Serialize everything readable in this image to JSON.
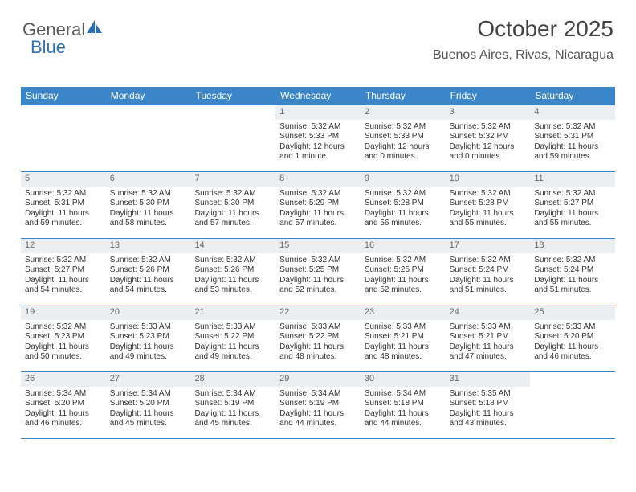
{
  "logo": {
    "text1": "General",
    "text2": "Blue"
  },
  "title": "October 2025",
  "location": "Buenos Aires, Rivas, Nicaragua",
  "colors": {
    "header_bg": "#3b86c8",
    "header_text": "#ffffff",
    "daynum_bg": "#eceff1",
    "daynum_text": "#666666",
    "body_text": "#333333",
    "border": "#3b86c8",
    "logo_gray": "#5a5a5a",
    "logo_blue": "#2c6fb5"
  },
  "day_headers": [
    "Sunday",
    "Monday",
    "Tuesday",
    "Wednesday",
    "Thursday",
    "Friday",
    "Saturday"
  ],
  "weeks": [
    [
      {
        "n": "",
        "empty": true
      },
      {
        "n": "",
        "empty": true
      },
      {
        "n": "",
        "empty": true
      },
      {
        "n": "1",
        "sr": "Sunrise: 5:32 AM",
        "ss": "Sunset: 5:33 PM",
        "dl": "Daylight: 12 hours and 1 minute."
      },
      {
        "n": "2",
        "sr": "Sunrise: 5:32 AM",
        "ss": "Sunset: 5:33 PM",
        "dl": "Daylight: 12 hours and 0 minutes."
      },
      {
        "n": "3",
        "sr": "Sunrise: 5:32 AM",
        "ss": "Sunset: 5:32 PM",
        "dl": "Daylight: 12 hours and 0 minutes."
      },
      {
        "n": "4",
        "sr": "Sunrise: 5:32 AM",
        "ss": "Sunset: 5:31 PM",
        "dl": "Daylight: 11 hours and 59 minutes."
      }
    ],
    [
      {
        "n": "5",
        "sr": "Sunrise: 5:32 AM",
        "ss": "Sunset: 5:31 PM",
        "dl": "Daylight: 11 hours and 59 minutes."
      },
      {
        "n": "6",
        "sr": "Sunrise: 5:32 AM",
        "ss": "Sunset: 5:30 PM",
        "dl": "Daylight: 11 hours and 58 minutes."
      },
      {
        "n": "7",
        "sr": "Sunrise: 5:32 AM",
        "ss": "Sunset: 5:30 PM",
        "dl": "Daylight: 11 hours and 57 minutes."
      },
      {
        "n": "8",
        "sr": "Sunrise: 5:32 AM",
        "ss": "Sunset: 5:29 PM",
        "dl": "Daylight: 11 hours and 57 minutes."
      },
      {
        "n": "9",
        "sr": "Sunrise: 5:32 AM",
        "ss": "Sunset: 5:28 PM",
        "dl": "Daylight: 11 hours and 56 minutes."
      },
      {
        "n": "10",
        "sr": "Sunrise: 5:32 AM",
        "ss": "Sunset: 5:28 PM",
        "dl": "Daylight: 11 hours and 55 minutes."
      },
      {
        "n": "11",
        "sr": "Sunrise: 5:32 AM",
        "ss": "Sunset: 5:27 PM",
        "dl": "Daylight: 11 hours and 55 minutes."
      }
    ],
    [
      {
        "n": "12",
        "sr": "Sunrise: 5:32 AM",
        "ss": "Sunset: 5:27 PM",
        "dl": "Daylight: 11 hours and 54 minutes."
      },
      {
        "n": "13",
        "sr": "Sunrise: 5:32 AM",
        "ss": "Sunset: 5:26 PM",
        "dl": "Daylight: 11 hours and 54 minutes."
      },
      {
        "n": "14",
        "sr": "Sunrise: 5:32 AM",
        "ss": "Sunset: 5:26 PM",
        "dl": "Daylight: 11 hours and 53 minutes."
      },
      {
        "n": "15",
        "sr": "Sunrise: 5:32 AM",
        "ss": "Sunset: 5:25 PM",
        "dl": "Daylight: 11 hours and 52 minutes."
      },
      {
        "n": "16",
        "sr": "Sunrise: 5:32 AM",
        "ss": "Sunset: 5:25 PM",
        "dl": "Daylight: 11 hours and 52 minutes."
      },
      {
        "n": "17",
        "sr": "Sunrise: 5:32 AM",
        "ss": "Sunset: 5:24 PM",
        "dl": "Daylight: 11 hours and 51 minutes."
      },
      {
        "n": "18",
        "sr": "Sunrise: 5:32 AM",
        "ss": "Sunset: 5:24 PM",
        "dl": "Daylight: 11 hours and 51 minutes."
      }
    ],
    [
      {
        "n": "19",
        "sr": "Sunrise: 5:32 AM",
        "ss": "Sunset: 5:23 PM",
        "dl": "Daylight: 11 hours and 50 minutes."
      },
      {
        "n": "20",
        "sr": "Sunrise: 5:33 AM",
        "ss": "Sunset: 5:23 PM",
        "dl": "Daylight: 11 hours and 49 minutes."
      },
      {
        "n": "21",
        "sr": "Sunrise: 5:33 AM",
        "ss": "Sunset: 5:22 PM",
        "dl": "Daylight: 11 hours and 49 minutes."
      },
      {
        "n": "22",
        "sr": "Sunrise: 5:33 AM",
        "ss": "Sunset: 5:22 PM",
        "dl": "Daylight: 11 hours and 48 minutes."
      },
      {
        "n": "23",
        "sr": "Sunrise: 5:33 AM",
        "ss": "Sunset: 5:21 PM",
        "dl": "Daylight: 11 hours and 48 minutes."
      },
      {
        "n": "24",
        "sr": "Sunrise: 5:33 AM",
        "ss": "Sunset: 5:21 PM",
        "dl": "Daylight: 11 hours and 47 minutes."
      },
      {
        "n": "25",
        "sr": "Sunrise: 5:33 AM",
        "ss": "Sunset: 5:20 PM",
        "dl": "Daylight: 11 hours and 46 minutes."
      }
    ],
    [
      {
        "n": "26",
        "sr": "Sunrise: 5:34 AM",
        "ss": "Sunset: 5:20 PM",
        "dl": "Daylight: 11 hours and 46 minutes."
      },
      {
        "n": "27",
        "sr": "Sunrise: 5:34 AM",
        "ss": "Sunset: 5:20 PM",
        "dl": "Daylight: 11 hours and 45 minutes."
      },
      {
        "n": "28",
        "sr": "Sunrise: 5:34 AM",
        "ss": "Sunset: 5:19 PM",
        "dl": "Daylight: 11 hours and 45 minutes."
      },
      {
        "n": "29",
        "sr": "Sunrise: 5:34 AM",
        "ss": "Sunset: 5:19 PM",
        "dl": "Daylight: 11 hours and 44 minutes."
      },
      {
        "n": "30",
        "sr": "Sunrise: 5:34 AM",
        "ss": "Sunset: 5:18 PM",
        "dl": "Daylight: 11 hours and 44 minutes."
      },
      {
        "n": "31",
        "sr": "Sunrise: 5:35 AM",
        "ss": "Sunset: 5:18 PM",
        "dl": "Daylight: 11 hours and 43 minutes."
      },
      {
        "n": "",
        "empty": true
      }
    ]
  ]
}
